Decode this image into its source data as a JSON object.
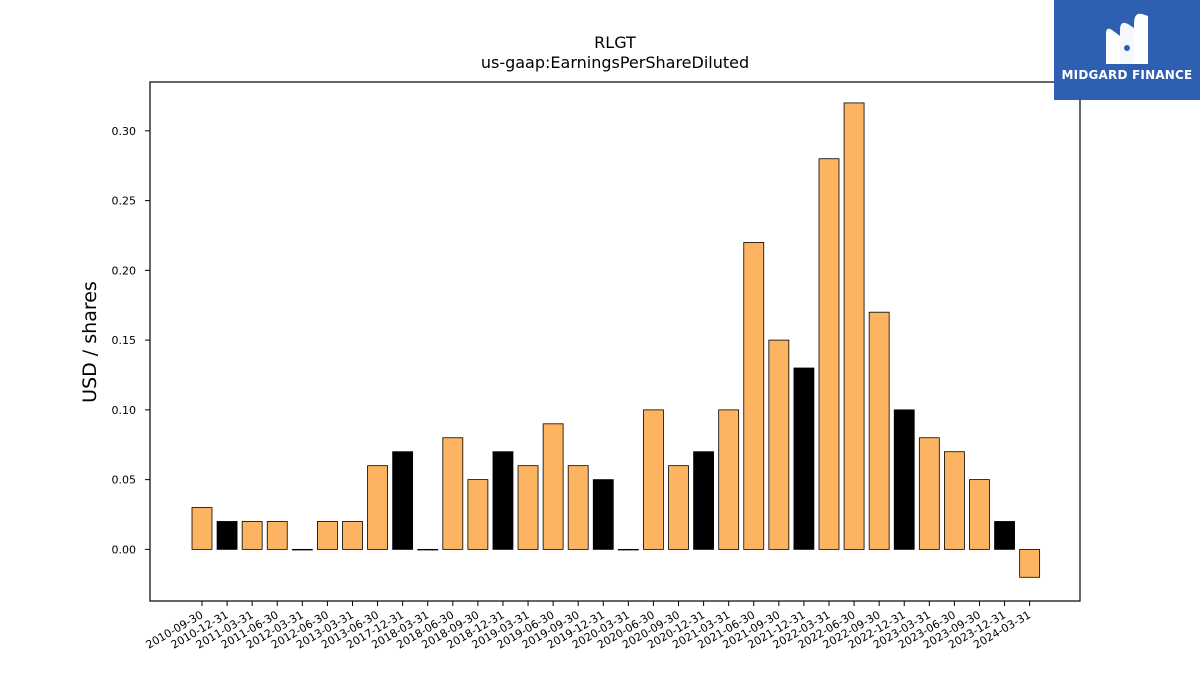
{
  "chart_data": {
    "type": "bar",
    "title": "RLGT",
    "subtitle": "us-gaap:EarningsPerShareDiluted",
    "xlabel": "",
    "ylabel": "USD / shares",
    "ylim": [
      -0.037,
      0.335
    ],
    "yticks": [
      "0.00",
      "0.05",
      "0.10",
      "0.15",
      "0.20",
      "0.25",
      "0.30"
    ],
    "grid": false,
    "colors": {
      "quarter": "#fdb462",
      "annual": "#000000",
      "edge": "#000000"
    },
    "categories": [
      "2010-09-30",
      "2010-12-31",
      "2011-03-31",
      "2011-06-30",
      "2012-03-31",
      "2012-06-30",
      "2013-03-31",
      "2013-06-30",
      "2017-12-31",
      "2018-03-31",
      "2018-06-30",
      "2018-09-30",
      "2018-12-31",
      "2019-03-31",
      "2019-06-30",
      "2019-09-30",
      "2019-12-31",
      "2020-03-31",
      "2020-06-30",
      "2020-09-30",
      "2020-12-31",
      "2021-03-31",
      "2021-06-30",
      "2021-09-30",
      "2021-12-31",
      "2022-03-31",
      "2022-06-30",
      "2022-09-30",
      "2022-12-31",
      "2023-03-31",
      "2023-06-30",
      "2023-09-30",
      "2023-12-31",
      "2024-03-31"
    ],
    "values": [
      0.03,
      0.02,
      0.02,
      0.02,
      0.0,
      0.02,
      0.02,
      0.06,
      0.07,
      0.0,
      0.08,
      0.05,
      0.07,
      0.06,
      0.09,
      0.06,
      0.05,
      0.0,
      0.1,
      0.06,
      0.07,
      0.1,
      0.22,
      0.15,
      0.13,
      0.28,
      0.32,
      0.17,
      0.1,
      0.08,
      0.07,
      0.05,
      0.02,
      -0.02
    ],
    "bar_kind": [
      "quarter",
      "annual",
      "quarter",
      "quarter",
      "quarter",
      "quarter",
      "quarter",
      "quarter",
      "annual",
      "quarter",
      "quarter",
      "quarter",
      "annual",
      "quarter",
      "quarter",
      "quarter",
      "annual",
      "quarter",
      "quarter",
      "quarter",
      "annual",
      "quarter",
      "quarter",
      "quarter",
      "annual",
      "quarter",
      "quarter",
      "quarter",
      "annual",
      "quarter",
      "quarter",
      "quarter",
      "annual",
      "quarter"
    ]
  },
  "logo": {
    "text": "MIDGARD FINANCE",
    "icon": "midgard-logo-icon"
  }
}
